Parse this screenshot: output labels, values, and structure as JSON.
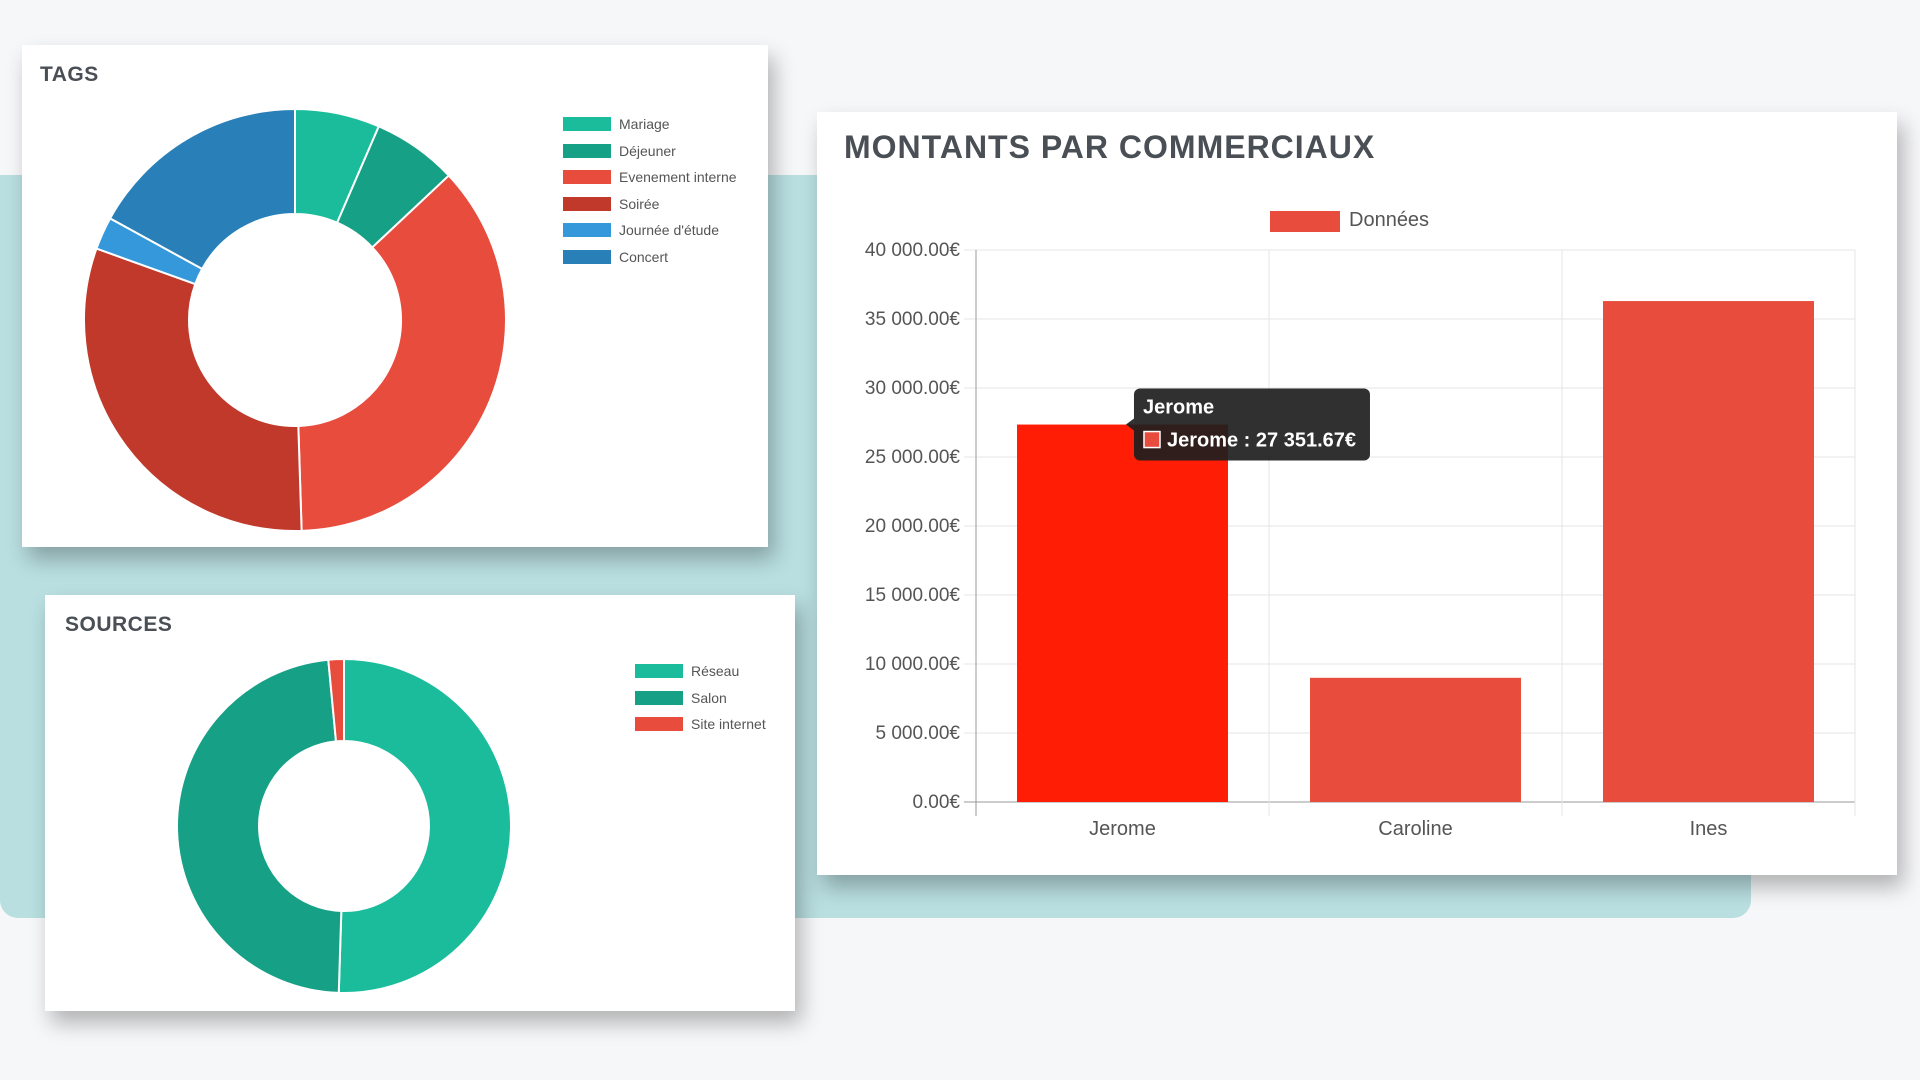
{
  "colors": {
    "teal_band": "#b9dfe1",
    "title_text": "#4a4f55",
    "bar": "#e74c3c",
    "bar_highlight": "#ff1e05",
    "tooltip_bg": "#1e1e1e"
  },
  "chart_data": [
    {
      "type": "pie",
      "variant": "doughnut",
      "title": "TAGS",
      "legend_position": "right",
      "categories": [
        "Mariage",
        "Déjeuner",
        "Evenement interne",
        "Soirée",
        "Journée d'étude",
        "Concert"
      ],
      "values": [
        6.5,
        6.5,
        36.5,
        31,
        2.5,
        17
      ],
      "colors": [
        "#1abc9c",
        "#16a085",
        "#e74c3c",
        "#c0392b",
        "#3498db",
        "#2980b9"
      ]
    },
    {
      "type": "pie",
      "variant": "doughnut",
      "title": "SOURCES",
      "legend_position": "right",
      "categories": [
        "Réseau",
        "Salon",
        "Site internet"
      ],
      "values": [
        50.5,
        48,
        1.5
      ],
      "colors": [
        "#1abc9c",
        "#16a085",
        "#e74c3c"
      ]
    },
    {
      "type": "bar",
      "title": "MONTANTS PAR COMMERCIAUX",
      "categories": [
        "Jerome",
        "Caroline",
        "Ines"
      ],
      "series": [
        {
          "name": "Données",
          "values": [
            27351.67,
            9000,
            36300
          ]
        }
      ],
      "ylim": [
        0,
        40000
      ],
      "yticks": [
        "0.00€",
        "5 000.00€",
        "10 000.00€",
        "15 000.00€",
        "20 000.00€",
        "25 000.00€",
        "30 000.00€",
        "35 000.00€",
        "40 000.00€"
      ],
      "grid": true,
      "legend_position": "top",
      "tooltip": {
        "category": "Jerome",
        "title": "Jerome",
        "body": "Jerome : 27 351.67€"
      }
    }
  ]
}
